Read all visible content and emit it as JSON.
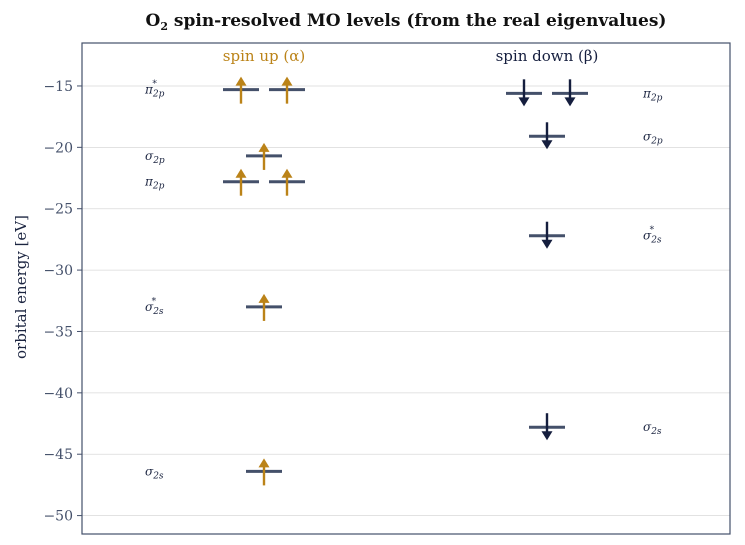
{
  "chart_data": {
    "type": "energy-level-diagram",
    "title_parts": [
      "O",
      "2",
      " spin-resolved MO levels (from the real eigenvalues)"
    ],
    "ylabel": "orbital energy  [eV]",
    "ylim": [
      -51.5,
      -11.5
    ],
    "yticks": [
      -15,
      -20,
      -25,
      -30,
      -35,
      -40,
      -45,
      -50
    ],
    "ytick_labels": [
      "−15",
      "−20",
      "−25",
      "−30",
      "−35",
      "−40",
      "−45",
      "−50"
    ],
    "grid": true,
    "colors": {
      "alpha": "#bb8318",
      "beta": "#151e3e",
      "level": "#44506a",
      "grid": "#d9d9d9",
      "frame": "#44506a"
    },
    "columns": [
      {
        "name": "spin up (α)",
        "spin": "up",
        "label_side": "left",
        "levels": [
          {
            "orbital": "π*2p",
            "label": [
              "π",
              "2p",
              "*"
            ],
            "energy": -15.3,
            "degeneracy": 2,
            "electrons": 2
          },
          {
            "orbital": "σ2p",
            "label": [
              "σ",
              "2p",
              ""
            ],
            "energy": -20.7,
            "degeneracy": 1,
            "electrons": 1
          },
          {
            "orbital": "π2p",
            "label": [
              "π",
              "2p",
              ""
            ],
            "energy": -22.8,
            "degeneracy": 2,
            "electrons": 2
          },
          {
            "orbital": "σ*2s",
            "label": [
              "σ",
              "2s",
              "*"
            ],
            "energy": -33.0,
            "degeneracy": 1,
            "electrons": 1
          },
          {
            "orbital": "σ2s",
            "label": [
              "σ",
              "2s",
              ""
            ],
            "energy": -46.4,
            "degeneracy": 1,
            "electrons": 1
          }
        ]
      },
      {
        "name": "spin down (β)",
        "spin": "down",
        "label_side": "right",
        "levels": [
          {
            "orbital": "π2p",
            "label": [
              "π",
              "2p",
              ""
            ],
            "energy": -15.6,
            "degeneracy": 2,
            "electrons": 2
          },
          {
            "orbital": "σ2p",
            "label": [
              "σ",
              "2p",
              ""
            ],
            "energy": -19.1,
            "degeneracy": 1,
            "electrons": 1
          },
          {
            "orbital": "σ*2s",
            "label": [
              "σ",
              "2s",
              "*"
            ],
            "energy": -27.2,
            "degeneracy": 1,
            "electrons": 1
          },
          {
            "orbital": "σ2s",
            "label": [
              "σ",
              "2s",
              ""
            ],
            "energy": -42.8,
            "degeneracy": 1,
            "electrons": 1
          }
        ]
      }
    ]
  }
}
